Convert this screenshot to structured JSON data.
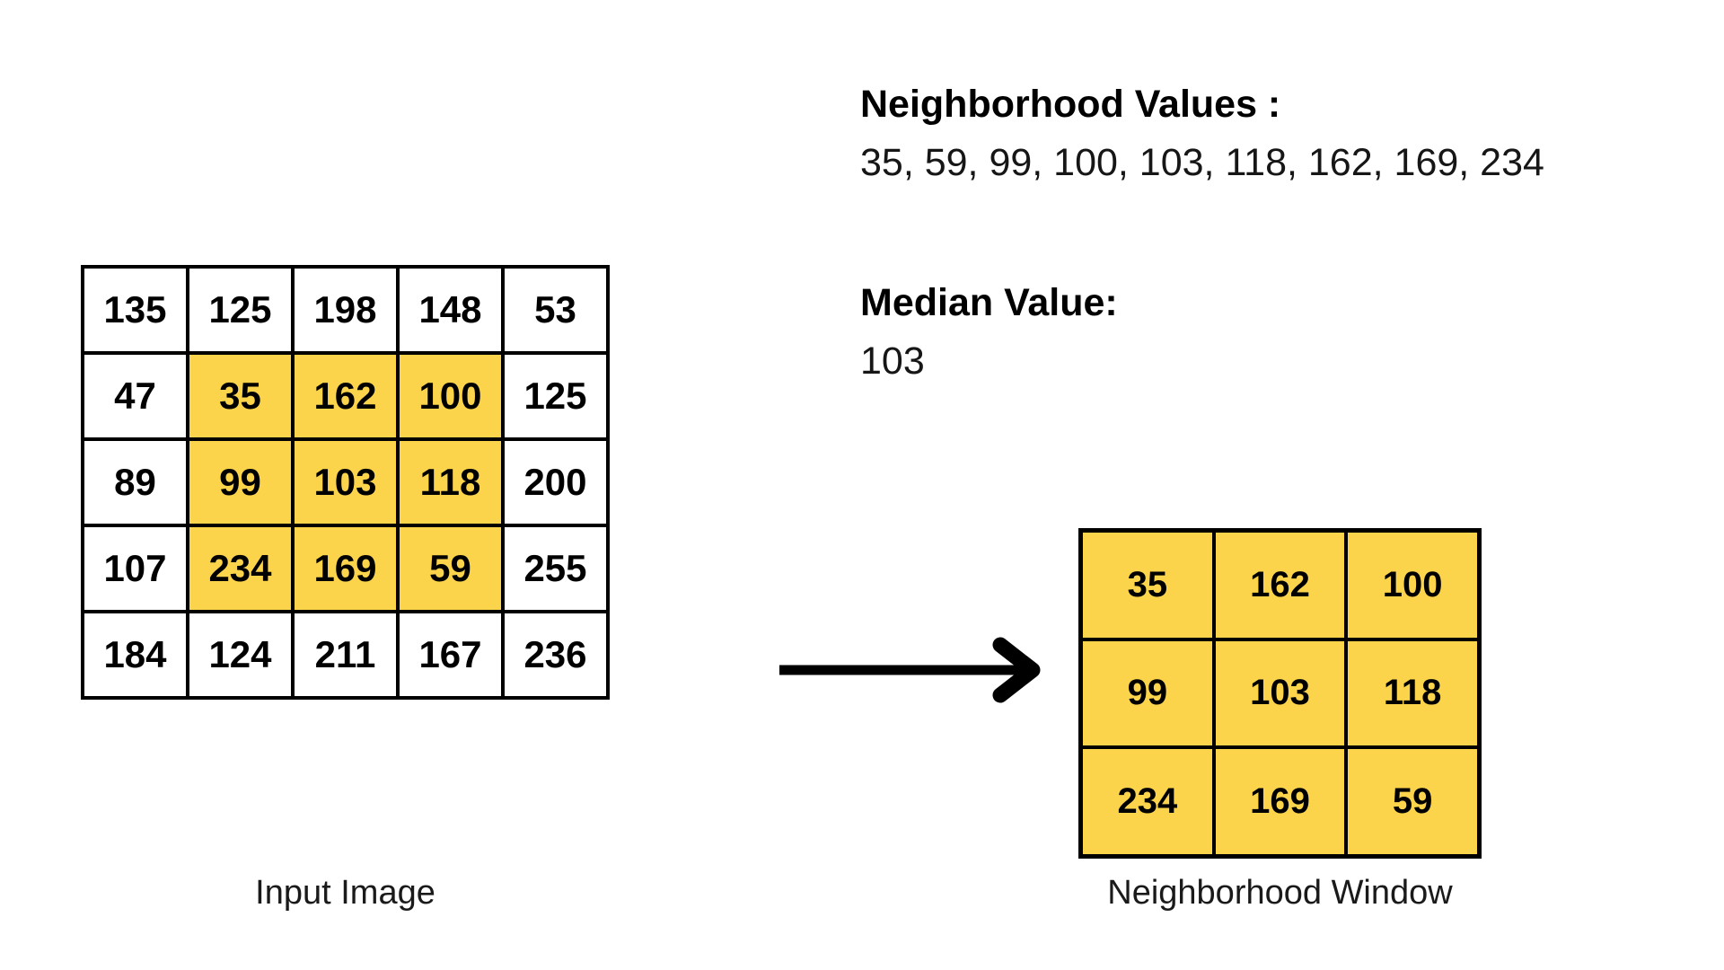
{
  "info": {
    "neighborhood_label": "Neighborhood Values :",
    "neighborhood_values": "35, 59, 99, 100, 103, 118, 162, 169, 234",
    "median_label": "Median Value:",
    "median_value": "103"
  },
  "input_grid": {
    "caption": "Input Image",
    "columns": 5,
    "cells": [
      {
        "v": "135",
        "h": false
      },
      {
        "v": "125",
        "h": false
      },
      {
        "v": "198",
        "h": false
      },
      {
        "v": "148",
        "h": false
      },
      {
        "v": "53",
        "h": false
      },
      {
        "v": "47",
        "h": false
      },
      {
        "v": "35",
        "h": true
      },
      {
        "v": "162",
        "h": true
      },
      {
        "v": "100",
        "h": true
      },
      {
        "v": "125",
        "h": false
      },
      {
        "v": "89",
        "h": false
      },
      {
        "v": "99",
        "h": true
      },
      {
        "v": "103",
        "h": true
      },
      {
        "v": "118",
        "h": true
      },
      {
        "v": "200",
        "h": false
      },
      {
        "v": "107",
        "h": false
      },
      {
        "v": "234",
        "h": true
      },
      {
        "v": "169",
        "h": true
      },
      {
        "v": "59",
        "h": true
      },
      {
        "v": "255",
        "h": false
      },
      {
        "v": "184",
        "h": false
      },
      {
        "v": "124",
        "h": false
      },
      {
        "v": "211",
        "h": false
      },
      {
        "v": "167",
        "h": false
      },
      {
        "v": "236",
        "h": false
      }
    ]
  },
  "window_grid": {
    "caption": "Neighborhood Window",
    "columns": 3,
    "cells": [
      {
        "v": "35",
        "h": true
      },
      {
        "v": "162",
        "h": true
      },
      {
        "v": "100",
        "h": true
      },
      {
        "v": "99",
        "h": true
      },
      {
        "v": "103",
        "h": true
      },
      {
        "v": "118",
        "h": true
      },
      {
        "v": "234",
        "h": true
      },
      {
        "v": "169",
        "h": true
      },
      {
        "v": "59",
        "h": true
      }
    ]
  },
  "colors": {
    "highlight": "#FBD44C",
    "border": "#000000",
    "arrow": "#000000"
  }
}
